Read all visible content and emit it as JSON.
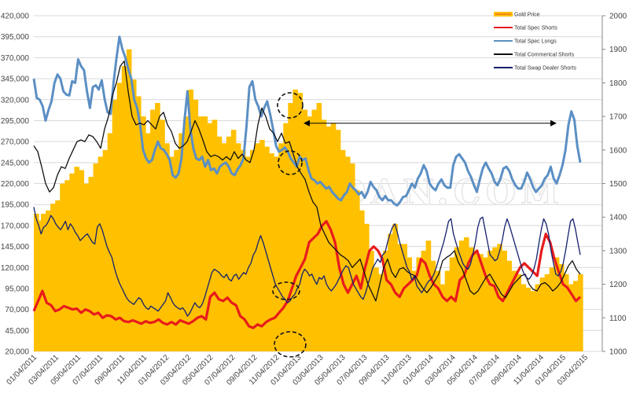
{
  "chart_data": {
    "type": "line",
    "title": "",
    "watermark": "TRADERDAN.COM",
    "xlabel": "",
    "ylabel_left": "",
    "ylabel_right": "",
    "x_tick_labels": [
      "01/04/2011",
      "03/04/2011",
      "05/04/2011",
      "07/04/2011",
      "09/04/2011",
      "11/04/2011",
      "01/04/2012",
      "03/04/2012",
      "05/04/2012",
      "07/04/2012",
      "09/04/2012",
      "11/04/2012",
      "01/04/2013",
      "03/04/2013",
      "05/04/2013",
      "07/04/2013",
      "09/04/2013",
      "11/04/2013",
      "01/04/2014",
      "03/04/2014",
      "05/04/2014",
      "07/04/2014",
      "09/04/2014",
      "11/04/2014",
      "01/04/2015",
      "03/04/2015"
    ],
    "y_left": {
      "min": 20000,
      "max": 420000,
      "step": 25000,
      "tick_labels": [
        "20,000",
        "45,000",
        "70,000",
        "95,000",
        "120,000",
        "145,000",
        "170,000",
        "195,000",
        "220,000",
        "245,000",
        "270,000",
        "295,000",
        "320,000",
        "345,000",
        "370,000",
        "395,000",
        "420,000"
      ]
    },
    "y_right": {
      "min": 1000,
      "max": 2000,
      "step": 100,
      "tick_labels": [
        "1000",
        "1100",
        "1200",
        "1300",
        "1400",
        "1500",
        "1600",
        "1700",
        "1800",
        "1900",
        "2000"
      ]
    },
    "grid": true,
    "legend_position": "top-right",
    "series": [
      {
        "name": "Gold Price",
        "type": "area",
        "axis": "right",
        "color": "#FFC000",
        "values": [
          1410,
          1390,
          1410,
          1420,
          1440,
          1450,
          1500,
          1510,
          1530,
          1550,
          1540,
          1500,
          1520,
          1560,
          1580,
          1600,
          1650,
          1750,
          1800,
          1850,
          1900,
          1810,
          1760,
          1700,
          1650,
          1720,
          1740,
          1690,
          1620,
          1580,
          1600,
          1650,
          1700,
          1780,
          1750,
          1700,
          1700,
          1680,
          1690,
          1640,
          1620,
          1640,
          1660,
          1620,
          1600,
          1580,
          1600,
          1620,
          1630,
          1610,
          1590,
          1580,
          1620,
          1680,
          1740,
          1780,
          1770,
          1720,
          1700,
          1720,
          1740,
          1690,
          1670,
          1680,
          1660,
          1600,
          1580,
          1560,
          1480,
          1420,
          1380,
          1300,
          1250,
          1230,
          1300,
          1350,
          1380,
          1320,
          1320,
          1280,
          1240,
          1280,
          1300,
          1330,
          1270,
          1240,
          1200,
          1240,
          1280,
          1310,
          1330,
          1340,
          1310,
          1300,
          1290,
          1280,
          1300,
          1310,
          1320,
          1300,
          1270,
          1240,
          1230,
          1200,
          1190,
          1180,
          1200,
          1220,
          1230,
          1250,
          1280,
          1260,
          1230,
          1200,
          1210,
          1230
        ]
      },
      {
        "name": "Total Spec Shorts",
        "type": "line",
        "axis": "left",
        "color": "#E81B1B",
        "values": [
          68000,
          80000,
          92000,
          78000,
          75000,
          68000,
          70000,
          74000,
          72000,
          70000,
          71000,
          66000,
          70000,
          68000,
          64000,
          66000,
          60000,
          63000,
          62000,
          58000,
          60000,
          56000,
          55000,
          57000,
          55000,
          53000,
          56000,
          54000,
          55000,
          58000,
          54000,
          52000,
          55000,
          52000,
          57000,
          55000,
          53000,
          56000,
          60000,
          62000,
          58000,
          85000,
          90000,
          82000,
          80000,
          84000,
          78000,
          75000,
          62000,
          58000,
          50000,
          48000,
          52000,
          50000,
          55000,
          58000,
          60000,
          66000,
          72000,
          80000,
          95000,
          110000,
          120000,
          130000,
          150000,
          155000,
          160000,
          170000,
          175000,
          165000,
          150000,
          120000,
          100000,
          90000,
          100000,
          110000,
          95000,
          120000,
          140000,
          145000,
          140000,
          130000,
          105000,
          100000,
          90000,
          85000,
          95000,
          100000,
          105000,
          110000,
          130000,
          125000,
          110000,
          100000,
          95000,
          85000,
          80000,
          85000,
          80000,
          105000,
          110000,
          125000,
          135000,
          140000,
          125000,
          110000,
          100000,
          98000,
          85000,
          80000,
          90000,
          100000,
          110000,
          120000,
          125000,
          120000,
          115000,
          110000,
          140000,
          160000,
          150000,
          130000,
          115000,
          100000,
          96000,
          88000,
          80000,
          85000
        ]
      },
      {
        "name": "Total Spec Longs",
        "type": "line",
        "axis": "left",
        "color": "#5B8FC4",
        "values": [
          345000,
          322000,
          320000,
          312000,
          295000,
          308000,
          318000,
          340000,
          350000,
          345000,
          330000,
          326000,
          325000,
          342000,
          340000,
          368000,
          360000,
          355000,
          330000,
          310000,
          335000,
          337000,
          332000,
          343000,
          320000,
          305000,
          303000,
          340000,
          370000,
          395000,
          380000,
          370000,
          356000,
          345000,
          320000,
          310000,
          290000,
          260000,
          250000,
          245000,
          248000,
          260000,
          270000,
          262000,
          260000,
          255000,
          248000,
          230000,
          227000,
          232000,
          250000,
          295000,
          330000,
          285000,
          262000,
          250000,
          248000,
          252000,
          240000,
          248000,
          236000,
          238000,
          232000,
          240000,
          243000,
          245000,
          240000,
          232000,
          230000,
          237000,
          242000,
          250000,
          288000,
          335000,
          342000,
          320000,
          312000,
          300000,
          310000,
          318000,
          303000,
          285000,
          265000,
          258000,
          260000,
          263000,
          258000,
          250000,
          245000,
          240000,
          252000,
          248000,
          250000,
          236000,
          226000,
          224000,
          220000,
          222000,
          218000,
          214000,
          216000,
          210000,
          206000,
          202000,
          200000,
          206000,
          210000,
          220000,
          215000,
          212000,
          207000,
          210000,
          203000,
          210000,
          222000,
          216000,
          212000,
          204000,
          200000,
          205000,
          200000,
          200000,
          196000,
          194000,
          198000,
          204000,
          205000,
          212000,
          220000,
          215000,
          226000,
          232000,
          242000,
          235000,
          220000,
          215000,
          212000,
          220000,
          225000,
          218000,
          215000,
          215000,
          242000,
          252000,
          255000,
          250000,
          245000,
          235000,
          228000,
          218000,
          210000,
          225000,
          238000,
          245000,
          238000,
          232000,
          222000,
          218000,
          226000,
          238000,
          240000,
          235000,
          225000,
          218000,
          214000,
          214000,
          222000,
          233000,
          226000,
          216000,
          210000,
          214000,
          218000,
          226000,
          230000,
          240000,
          226000,
          220000,
          230000,
          242000,
          260000,
          290000,
          306000,
          296000,
          265000,
          245000
        ]
      },
      {
        "name": "Total Commerical Shorts",
        "type": "line",
        "axis": "left",
        "color": "#111111",
        "values": [
          265000,
          258000,
          240000,
          220000,
          210000,
          215000,
          230000,
          240000,
          238000,
          250000,
          260000,
          270000,
          272000,
          270000,
          278000,
          276000,
          270000,
          262000,
          285000,
          300000,
          325000,
          340000,
          360000,
          366000,
          330000,
          300000,
          290000,
          292000,
          290000,
          295000,
          290000,
          285000,
          300000,
          305000,
          290000,
          282000,
          268000,
          262000,
          265000,
          270000,
          282000,
          295000,
          285000,
          272000,
          258000,
          252000,
          254000,
          252000,
          248000,
          252000,
          248000,
          258000,
          250000,
          255000,
          248000,
          245000,
          260000,
          290000,
          310000,
          300000,
          285000,
          280000,
          270000,
          280000,
          268000,
          270000,
          255000,
          240000,
          232000,
          225000,
          210000,
          198000,
          192000,
          170000,
          160000,
          150000,
          145000,
          140000,
          135000,
          132000,
          128000,
          120000,
          125000,
          130000,
          115000,
          100000,
          90000,
          80000,
          100000,
          120000,
          130000,
          115000,
          108000,
          118000,
          120000,
          115000,
          112000,
          110000,
          102000,
          95000,
          90000,
          96000,
          104000,
          112000,
          128000,
          132000,
          135000,
          140000,
          126000,
          118000,
          105000,
          92000,
          88000,
          92000,
          100000,
          108000,
          112000,
          104000,
          96000,
          88000,
          84000,
          92000,
          100000,
          105000,
          110000,
          112000,
          100000,
          94000,
          92000,
          100000,
          102000,
          98000,
          92000,
          96000,
          102000,
          112000,
          122000,
          128000,
          118000,
          112000
        ]
      },
      {
        "name": "Total Swap Dealer Shorts",
        "type": "line",
        "axis": "left",
        "color": "#14206E",
        "values": [
          192000,
          178000,
          170000,
          160000,
          168000,
          170000,
          175000,
          182000,
          178000,
          172000,
          168000,
          165000,
          170000,
          175000,
          165000,
          172000,
          168000,
          162000,
          158000,
          152000,
          155000,
          158000,
          160000,
          155000,
          150000,
          148000,
          168000,
          172000,
          165000,
          155000,
          145000,
          138000,
          132000,
          120000,
          110000,
          102000,
          96000,
          90000,
          84000,
          80000,
          78000,
          76000,
          80000,
          84000,
          82000,
          76000,
          72000,
          70000,
          74000,
          72000,
          70000,
          68000,
          72000,
          76000,
          80000,
          90000,
          84000,
          78000,
          74000,
          72000,
          70000,
          72000,
          68000,
          62000,
          66000,
          72000,
          78000,
          74000,
          72000,
          76000,
          84000,
          94000,
          104000,
          114000,
          118000,
          116000,
          114000,
          110000,
          108000,
          112000,
          106000,
          104000,
          110000,
          112000,
          106000,
          110000,
          114000,
          112000,
          120000,
          125000,
          135000,
          140000,
          150000,
          158000,
          150000,
          140000,
          130000,
          120000,
          110000,
          100000,
          95000,
          90000,
          85000,
          82000,
          78000,
          80000,
          85000,
          88000,
          95000,
          100000,
          112000,
          118000,
          115000,
          110000,
          112000,
          105000,
          100000,
          108000,
          106000,
          110000,
          100000,
          95000,
          92000,
          96000,
          100000,
          106000,
          112000,
          118000,
          122000,
          120000,
          110000,
          100000,
          95000,
          90000,
          85000,
          82000,
          90000,
          100000,
          110000,
          120000,
          125000,
          130000,
          126000,
          135000,
          138000,
          150000,
          160000,
          168000,
          172000,
          162000,
          150000,
          140000,
          130000,
          120000,
          115000,
          105000,
          110000,
          98000,
          94000,
          90000,
          94000,
          100000,
          104000,
          106000,
          112000,
          120000,
          130000,
          140000,
          150000,
          162000,
          175000,
          178000,
          160000,
          150000,
          140000,
          132000,
          124000,
          120000,
          118000,
          124000,
          136000,
          150000,
          168000,
          178000,
          180000,
          165000,
          150000,
          135000,
          132000,
          128000,
          130000,
          140000,
          152000,
          168000,
          178000,
          170000,
          160000,
          150000,
          140000,
          130000,
          120000,
          112000,
          108000,
          106000,
          110000,
          118000,
          130000,
          148000,
          165000,
          178000,
          172000,
          160000,
          140000,
          125000,
          112000,
          110000,
          115000,
          125000,
          140000,
          158000,
          175000,
          178000,
          166000,
          150000,
          135000
        ]
      }
    ],
    "annotations": [
      {
        "type": "double-arrow",
        "description": "horizontal arrow linking Spec Longs peak late 2012/early 2013 to 03/2015 peak",
        "level_left_axis": 305000
      },
      {
        "type": "dashed-circle",
        "description": "Spec Longs near 12/2012",
        "series": "Total Spec Longs"
      },
      {
        "type": "dashed-circle",
        "description": "Commercial Shorts near 12/2012",
        "series": "Total Commerical Shorts"
      },
      {
        "type": "dashed-circle",
        "description": "Swap Dealer Shorts near 12/2012",
        "series": "Total Swap Dealer Shorts"
      },
      {
        "type": "dashed-circle",
        "description": "Spec Shorts near 12/2012",
        "series": "Total Spec Shorts"
      }
    ]
  }
}
